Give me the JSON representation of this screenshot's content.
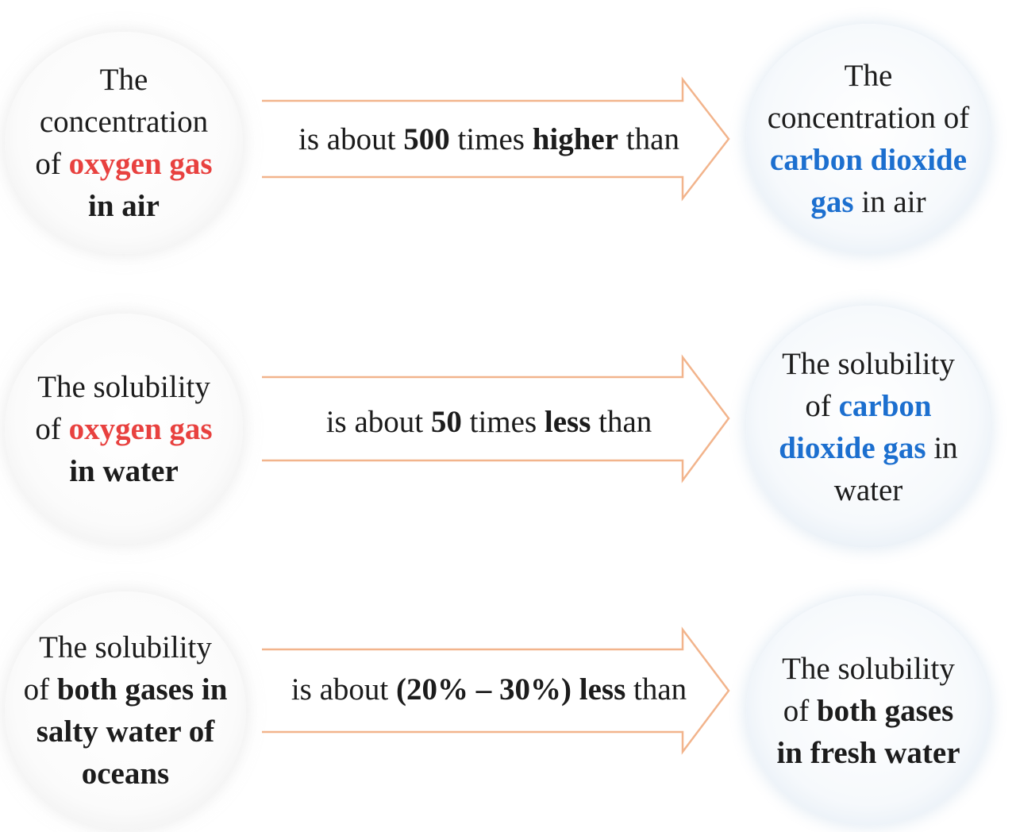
{
  "rows": [
    {
      "left": {
        "line1": "The",
        "line2": "concentration",
        "line3_prefix": "of ",
        "line3_highlight": "oxygen gas",
        "line4": "in air"
      },
      "relation": {
        "prefix": "is about ",
        "number": "500",
        "middle": " times ",
        "comparison": "higher",
        "suffix": " than"
      },
      "right": {
        "line1": "The",
        "line2": "concentration of",
        "line3_highlight": "carbon dioxide",
        "line4_highlight": "gas",
        "line4_suffix": " in air"
      }
    },
    {
      "left": {
        "line1": "The solubility",
        "line2_prefix": "of ",
        "line2_highlight": "oxygen gas",
        "line3": "in water"
      },
      "relation": {
        "prefix": "is about ",
        "number": "50",
        "middle": " times ",
        "comparison": "less",
        "suffix": " than"
      },
      "right": {
        "line1": "The solubility",
        "line2_prefix": "of ",
        "line2_highlight": "carbon",
        "line3_highlight": "dioxide gas",
        "line3_suffix": " in",
        "line4": "water"
      }
    },
    {
      "left": {
        "line1": "The solubility",
        "line2_prefix": "of ",
        "line2_bold": "both gases in",
        "line3": "salty water of",
        "line4": "oceans"
      },
      "relation": {
        "prefix": "is about ",
        "range": "(20% – 30%)",
        "comparison": " less",
        "suffix": " than"
      },
      "right": {
        "line1": "The solubility",
        "line2_prefix": "of ",
        "line2_bold": "both gases",
        "line3": "in fresh water"
      }
    }
  ],
  "colors": {
    "oxygen": "#e8413f",
    "carbon_dioxide": "#1c6fcf",
    "arrow": "#f2b48c"
  }
}
